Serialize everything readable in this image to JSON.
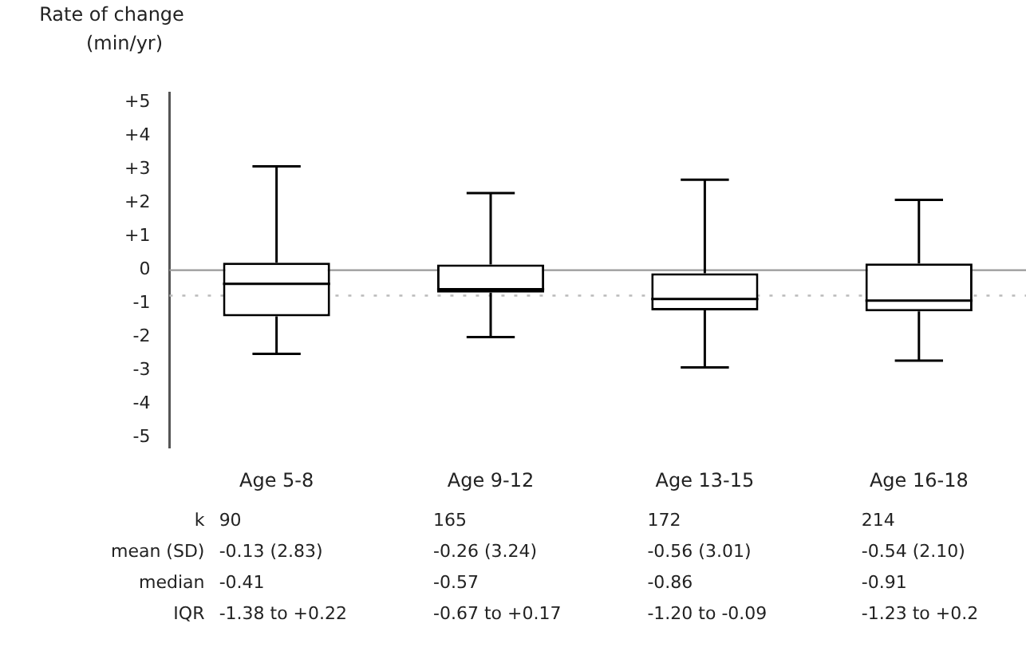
{
  "chart_data": {
    "type": "box",
    "ylabel": "Rate of change\n(min/yr)",
    "categories": [
      "Age 5-8",
      "Age 9-12",
      "Age 13-15",
      "Age 16-18"
    ],
    "boxes": [
      {
        "low": -2.5,
        "q1": -1.38,
        "median": -0.41,
        "q3": 0.22,
        "high": 3.1
      },
      {
        "low": -2.0,
        "q1": -0.67,
        "median": -0.57,
        "q3": 0.17,
        "high": 2.3
      },
      {
        "low": -2.9,
        "q1": -1.2,
        "median": -0.86,
        "q3": -0.09,
        "high": 2.7
      },
      {
        "low": -2.7,
        "q1": -1.23,
        "median": -0.91,
        "q3": 0.2,
        "high": 2.1
      }
    ],
    "color": "#000000",
    "ylim": [
      -5.3,
      5.3
    ],
    "yticks": [
      {
        "value": 5,
        "label": "+5"
      },
      {
        "value": 4,
        "label": "+4"
      },
      {
        "value": 3,
        "label": "+3"
      },
      {
        "value": 2,
        "label": "+2"
      },
      {
        "value": 1,
        "label": "+1"
      },
      0,
      -1,
      -2,
      -3,
      -4,
      -5
    ],
    "ref_lines": [
      {
        "axis": "y",
        "value": 0,
        "color": "#999999",
        "line_style": "solid"
      },
      {
        "axis": "y",
        "value": -0.76,
        "color": "#bbbbbb",
        "line_style": "dotted"
      }
    ],
    "legend": false,
    "grid": false,
    "annotations": [
      "k",
      "90",
      "165",
      "172",
      "214",
      "mean (SD)",
      "-0.13 (2.83)",
      "-0.26 (3.24)",
      "-0.56 (3.01)",
      "-0.54 (2.10)",
      "median",
      "-0.41",
      "-0.57",
      "-0.86",
      "-0.91",
      "IQR",
      "-1.38 to +0.22",
      "-0.67 to +0.17",
      "-1.20 to -0.09",
      "-1.23 to +0.2"
    ]
  }
}
